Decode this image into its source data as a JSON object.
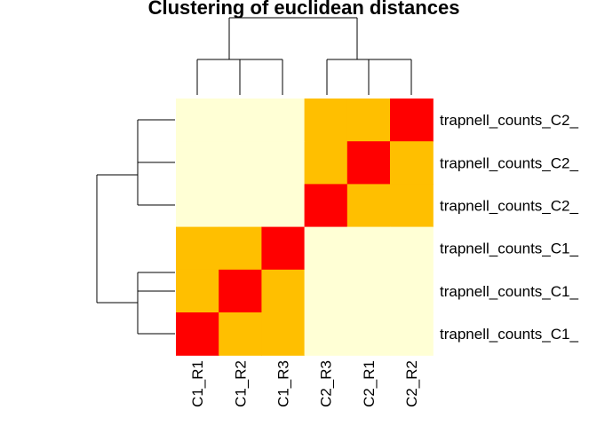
{
  "chart_data": {
    "type": "heatmap",
    "title": "Clustering of euclidean distances",
    "xlabel": "",
    "ylabel": "",
    "columns": [
      "C1_R1",
      "C1_R2",
      "C1_R3",
      "C2_R3",
      "C2_R1",
      "C2_R2"
    ],
    "rows": [
      "trapnell_counts_C2_",
      "trapnell_counts_C2_",
      "trapnell_counts_C2_",
      "trapnell_counts_C1_",
      "trapnell_counts_C1_",
      "trapnell_counts_C1_"
    ],
    "values": [
      [
        3,
        3,
        3,
        2,
        2,
        1
      ],
      [
        3,
        3,
        3,
        2,
        1,
        2
      ],
      [
        3,
        3,
        3,
        1,
        2,
        2
      ],
      [
        2,
        2,
        1,
        3,
        3,
        3
      ],
      [
        2,
        1,
        2,
        3,
        3,
        3
      ],
      [
        1,
        2,
        2,
        3,
        3,
        3
      ]
    ],
    "colors": {
      "1": "#ff0000",
      "2": "#ffbf00",
      "3": "#ffffd5"
    },
    "col_dendrogram": "((C1_R1,(C1_R2,C1_R3)),(C2_R3,(C2_R1,C2_R2)))",
    "row_dendrogram": "((row1,(row2,row3)),(row4,(row5,row6)))"
  }
}
